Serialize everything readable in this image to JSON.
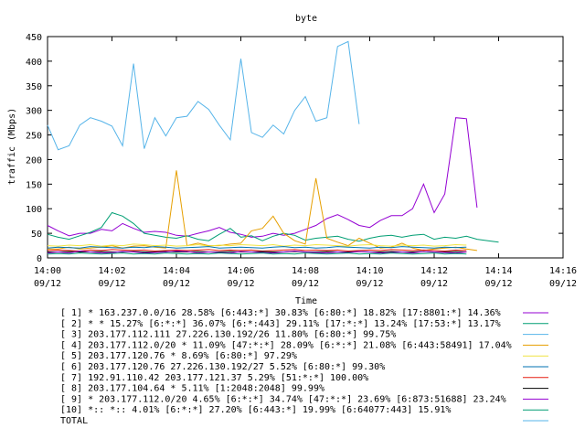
{
  "chart_data": {
    "type": "line",
    "title": "byte",
    "xlabel": "Time",
    "ylabel": "traffic (Mbps)",
    "ylim": [
      0,
      450
    ],
    "yticks": [
      "0",
      "50",
      "100",
      "150",
      "200",
      "250",
      "300",
      "350",
      "400",
      "450"
    ],
    "xrange_minutes": [
      0,
      16
    ],
    "xticks": [
      {
        "time": "14:00",
        "date": "09/12"
      },
      {
        "time": "14:02",
        "date": "09/12"
      },
      {
        "time": "14:04",
        "date": "09/12"
      },
      {
        "time": "14:06",
        "date": "09/12"
      },
      {
        "time": "14:08",
        "date": "09/12"
      },
      {
        "time": "14:10",
        "date": "09/12"
      },
      {
        "time": "14:12",
        "date": "09/12"
      },
      {
        "time": "14:14",
        "date": "09/12"
      },
      {
        "time": "14:16",
        "date": "09/12"
      }
    ],
    "x_minutes": [
      0,
      0.33,
      0.67,
      1,
      1.33,
      1.67,
      2,
      2.33,
      2.67,
      3,
      3.33,
      3.67,
      4,
      4.33,
      4.67,
      5,
      5.33,
      5.67,
      6,
      6.33,
      6.67,
      7,
      7.33,
      7.67,
      8,
      8.33,
      8.67,
      9,
      9.33,
      9.67,
      10,
      10.33,
      10.67,
      11,
      11.33,
      11.67,
      12,
      12.33,
      12.67,
      13,
      13.33,
      13.67,
      14,
      14.33
    ],
    "grid": false,
    "legend_position": "bottom",
    "series": [
      {
        "name": "[ 1] * 163.237.0.0/16 28.58%  [6:443:*] 30.83% [6:80:*] 18.82% [17:8801:*] 14.36%",
        "color": "#9400d3",
        "values": [
          66,
          55,
          45,
          50,
          50,
          58,
          55,
          70,
          60,
          52,
          54,
          52,
          46,
          44,
          50,
          55,
          62,
          52,
          48,
          42,
          44,
          50,
          46,
          50,
          58,
          66,
          80,
          88,
          78,
          66,
          62,
          76,
          86,
          86,
          100,
          150,
          92,
          130,
          285,
          283,
          102
        ]
      },
      {
        "name": "[ 2] * * 15.27%  [6:*:*] 36.07% [6:*:443] 29.11% [17:*:*] 13.24% [17:53:*] 13.17%",
        "color": "#009e73",
        "values": [
          48,
          42,
          38,
          45,
          52,
          62,
          92,
          85,
          70,
          50,
          46,
          42,
          40,
          45,
          38,
          35,
          48,
          60,
          42,
          45,
          35,
          44,
          50,
          46,
          36,
          40,
          42,
          44,
          38,
          34,
          40,
          44,
          46,
          42,
          46,
          48,
          38,
          42,
          40,
          44,
          38,
          35,
          32
        ]
      },
      {
        "name": "[ 3] 203.177.112.111 27.226.130.192/26 11.80%  [6:80:*] 99.75%",
        "color": "#56b4e9",
        "values": [
          270,
          220,
          228,
          270,
          285,
          278,
          268,
          228,
          395,
          222,
          285,
          248,
          285,
          288,
          318,
          302,
          270,
          240,
          405,
          255,
          245,
          270,
          252,
          300,
          328,
          278,
          285,
          430,
          440,
          272
        ]
      },
      {
        "name": "[ 4] 203.177.112.0/20 * 11.09%  [47:*:*] 28.09% [6:*:*] 21.08% [6:443:58491] 17.04%",
        "color": "#e69f00",
        "values": [
          18,
          18,
          22,
          18,
          20,
          22,
          25,
          20,
          24,
          25,
          22,
          20,
          178,
          25,
          30,
          25,
          25,
          28,
          30,
          55,
          60,
          85,
          50,
          35,
          28,
          162,
          40,
          32,
          25,
          40,
          30,
          20,
          22,
          30,
          20,
          15,
          18,
          20,
          22,
          18,
          15
        ]
      },
      {
        "name": "[ 5] 203.177.120.76 * 8.69%  [6:80:*] 97.29%",
        "color": "#f0e442",
        "values": [
          25,
          24,
          26,
          25,
          27,
          24,
          26,
          25,
          28,
          27,
          25,
          26,
          24,
          25,
          27,
          24,
          26,
          25,
          27,
          26,
          25,
          27,
          24,
          26,
          25,
          27,
          26,
          25,
          24,
          26,
          27,
          25,
          24,
          26,
          25,
          26,
          24,
          25,
          27,
          26
        ]
      },
      {
        "name": "[ 6] 203.177.120.76 27.226.130.192/27 5.52%  [6:80:*] 99.30%",
        "color": "#0072b2",
        "values": [
          20,
          22,
          21,
          20,
          23,
          22,
          21,
          20,
          22,
          21,
          23,
          22,
          20,
          21,
          22,
          23,
          20,
          21,
          22,
          21,
          20,
          22,
          23,
          21,
          22,
          20,
          21,
          23,
          22,
          21,
          20,
          22,
          21,
          23,
          22,
          21,
          20,
          22,
          21,
          22
        ]
      },
      {
        "name": "[ 7] 192.91.110.42 203.177.121.37 5.29%  [51:*:*] 100.00%",
        "color": "#e51e10",
        "values": [
          15,
          16,
          15,
          14,
          16,
          15,
          17,
          16,
          15,
          16,
          14,
          15,
          16,
          15,
          16,
          17,
          15,
          16,
          15,
          16,
          14,
          15,
          16,
          17,
          15,
          16,
          15,
          16,
          14,
          15,
          16,
          15,
          17,
          16,
          15,
          16,
          15,
          14,
          16,
          15
        ]
      },
      {
        "name": "[ 8] 203.177.104.64 * 5.11%  [1:2048:2048] 99.99%",
        "color": "#000000",
        "values": [
          12,
          12,
          13,
          12,
          12,
          13,
          12,
          12,
          13,
          12,
          12,
          13,
          12,
          12,
          13,
          12,
          12,
          13,
          12,
          12,
          13,
          12,
          12,
          13,
          12,
          12,
          13,
          12,
          12,
          13,
          12,
          12,
          13,
          12,
          12,
          13,
          12,
          12,
          13,
          12
        ]
      },
      {
        "name": "[ 9] * 203.177.112.0/20 4.65%  [6:*:*] 34.74% [47:*:*] 23.69% [6:873:51688] 23.24%",
        "color": "#9400d3",
        "values": [
          10,
          12,
          10,
          14,
          12,
          10,
          11,
          13,
          12,
          10,
          11,
          12,
          14,
          13,
          10,
          12,
          11,
          10,
          13,
          12,
          11,
          10,
          12,
          14,
          12,
          11,
          10,
          12,
          11,
          13,
          12,
          10,
          11,
          12,
          10,
          13,
          12,
          11,
          10,
          12
        ]
      },
      {
        "name": "[10] *:: *:: 4.01%  [6:*:*] 27.20% [6:443:*] 19.99% [6:64077:443] 15.91%",
        "color": "#009e73",
        "values": [
          8,
          9,
          8,
          10,
          9,
          8,
          9,
          10,
          8,
          9,
          8,
          10,
          9,
          8,
          9,
          8,
          10,
          9,
          8,
          9,
          10,
          8,
          9,
          8,
          10,
          9,
          8,
          9,
          10,
          8,
          9,
          8,
          10,
          9,
          8,
          9,
          10,
          8,
          9,
          8
        ]
      },
      {
        "name": "TOTAL",
        "color": "#56b4e9",
        "values": []
      }
    ]
  }
}
